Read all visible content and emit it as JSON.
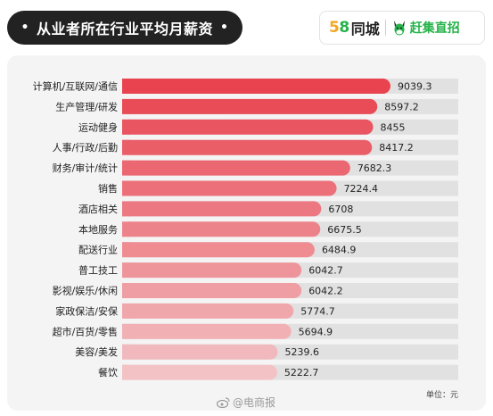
{
  "header": {
    "title": "从业者所在行业平均月薪资",
    "title_dot": "•",
    "logo_58_five": "5",
    "logo_58_eight": "8",
    "logo_tongcheng": "同城",
    "logo_ganjizhizhao": "赶集直招"
  },
  "footer": {
    "unit": "单位：元",
    "watermark": "@电商报"
  },
  "colors": {
    "bar_top": "#e8434f",
    "bar_bottom": "#f2c2c5",
    "track": "#e1e1e1",
    "brand_green": "#26b34b",
    "brand_orange": "#f5a623"
  },
  "chart_data": {
    "type": "bar",
    "orientation": "horizontal",
    "categories": [
      "计算机/互联网/通信",
      "生产管理/研发",
      "运动健身",
      "人事/行政/后勤",
      "财务/审计/统计",
      "销售",
      "酒店相关",
      "本地服务",
      "配送行业",
      "普工技工",
      "影视/娱乐/休闲",
      "家政保洁/安保",
      "超市/百货/零售",
      "美容/美发",
      "餐饮"
    ],
    "values": [
      9039.3,
      8597.2,
      8455,
      8417.2,
      7682.3,
      7224.4,
      6708,
      6675.5,
      6484.9,
      6042.7,
      6042.2,
      5774.7,
      5694.9,
      5239.6,
      5222.7
    ],
    "labels": [
      "9039.3",
      "8597.2",
      "8455",
      "8417.2",
      "7682.3",
      "7224.4",
      "6708",
      "6675.5",
      "6484.9",
      "6042.7",
      "6042.2",
      "5774.7",
      "5694.9",
      "5239.6",
      "5222.7"
    ],
    "title": "从业者所在行业平均月薪资",
    "unit": "元",
    "grid": false,
    "axis_visible": false
  }
}
